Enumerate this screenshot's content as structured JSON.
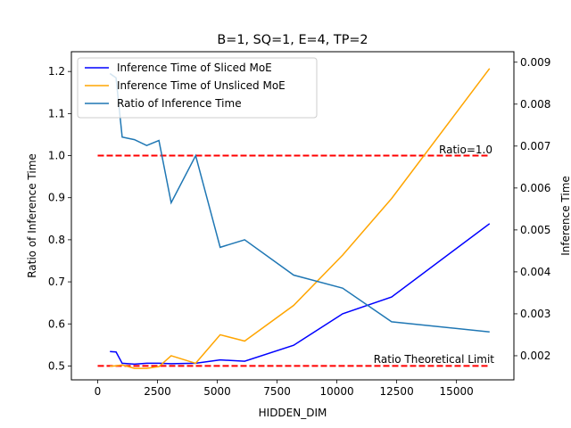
{
  "chart_data": {
    "type": "line",
    "title": "B=1, SQ=1, E=4, TP=2",
    "xlabel": "HIDDEN_DIM",
    "ylabel_left": "Ratio of Inference Time",
    "ylabel_right": "Inference Time",
    "xlim": [
      -1100,
      17400
    ],
    "ylim_left": [
      0.467,
      1.247
    ],
    "ylim_right": [
      0.001425,
      0.00925
    ],
    "x_ticks": [
      0,
      2500,
      5000,
      7500,
      10000,
      12500,
      15000
    ],
    "left_ticks": [
      0.5,
      0.6,
      0.7,
      0.8,
      0.9,
      1.0,
      1.1,
      1.2
    ],
    "right_ticks": [
      0.002,
      0.003,
      0.004,
      0.005,
      0.006,
      0.007,
      0.008,
      0.009
    ],
    "grid": false,
    "legend_position": "top-left",
    "x": [
      512,
      768,
      1024,
      1536,
      2048,
      2560,
      3072,
      4096,
      5120,
      6144,
      8192,
      10240,
      12288,
      16384
    ],
    "series": [
      {
        "name": "Inference Time of Sliced MoE",
        "axis": "right",
        "color": "#0000ff",
        "values": [
          0.0021,
          0.00209,
          0.00182,
          0.0018,
          0.00182,
          0.00182,
          0.00181,
          0.00182,
          0.0019,
          0.00187,
          0.00225,
          0.003,
          0.0034,
          0.00515
        ]
      },
      {
        "name": "Inference Time of Unsliced MoE",
        "axis": "right",
        "color": "#ffa500",
        "values": [
          0.00175,
          0.00176,
          0.00178,
          0.0017,
          0.0017,
          0.00174,
          0.002,
          0.00182,
          0.0025,
          0.00235,
          0.0032,
          0.0044,
          0.00575,
          0.00885
        ]
      },
      {
        "name": "Ratio of Inference Time",
        "axis": "left",
        "color": "#1f77b4",
        "values": [
          1.195,
          1.185,
          1.044,
          1.038,
          1.024,
          1.036,
          0.888,
          1.0,
          0.782,
          0.8,
          0.716,
          0.685,
          0.605,
          0.581
        ]
      }
    ],
    "reference_lines": [
      {
        "value": 1.0,
        "axis": "left",
        "color": "#ff0000",
        "style": "dashed",
        "label": "Ratio=1.0"
      },
      {
        "value": 0.5,
        "axis": "left",
        "color": "#ff0000",
        "style": "dashed",
        "label": "Ratio Theoretical Limit"
      }
    ]
  }
}
